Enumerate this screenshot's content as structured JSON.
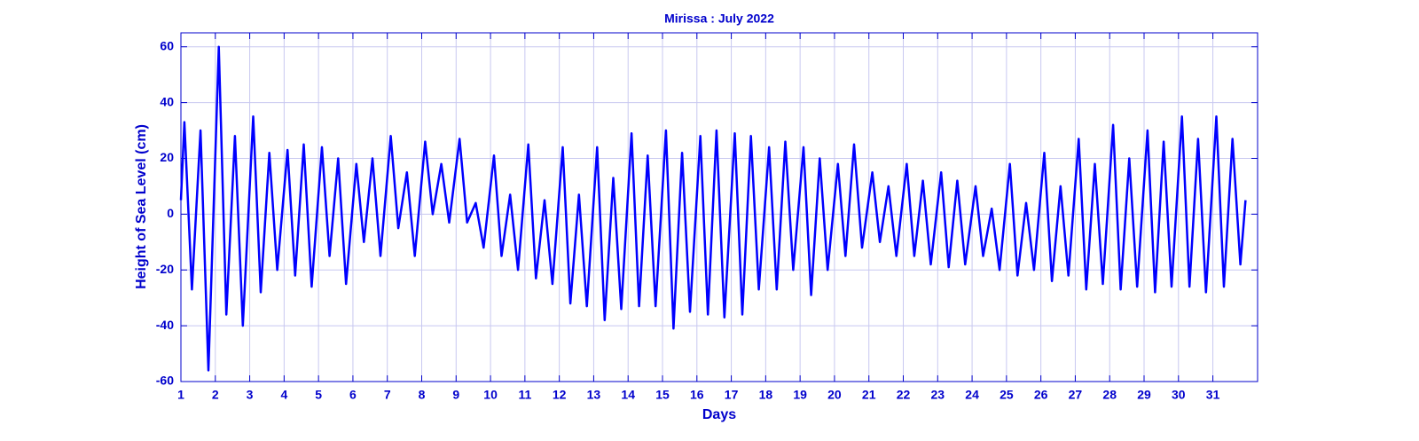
{
  "chart_data": {
    "type": "line",
    "title": "Mirissa : July 2022",
    "xlabel": "Days",
    "ylabel": "Height of Sea Level (cm)",
    "color": "#0000ff",
    "grid": true,
    "xlim": [
      1,
      32.3
    ],
    "ylim": [
      -60,
      65
    ],
    "xticks": [
      1,
      2,
      3,
      4,
      5,
      6,
      7,
      8,
      9,
      10,
      11,
      12,
      13,
      14,
      15,
      16,
      17,
      18,
      19,
      20,
      21,
      22,
      23,
      24,
      25,
      26,
      27,
      28,
      29,
      30,
      31
    ],
    "yticks": [
      -60,
      -40,
      -20,
      0,
      20,
      40,
      60
    ],
    "x": [
      1,
      1.1,
      1.32,
      1.57,
      1.8,
      2.1,
      2.32,
      2.57,
      2.8,
      3.1,
      3.32,
      3.57,
      3.8,
      4.1,
      4.32,
      4.57,
      4.8,
      5.1,
      5.32,
      5.57,
      5.8,
      6.1,
      6.32,
      6.57,
      6.8,
      7.1,
      7.32,
      7.57,
      7.8,
      8.1,
      8.32,
      8.57,
      8.8,
      9.1,
      9.32,
      9.57,
      9.8,
      10.1,
      10.32,
      10.57,
      10.8,
      11.1,
      11.32,
      11.57,
      11.8,
      12.1,
      12.32,
      12.57,
      12.8,
      13.1,
      13.32,
      13.57,
      13.8,
      14.1,
      14.32,
      14.57,
      14.8,
      15.1,
      15.32,
      15.57,
      15.8,
      16.1,
      16.32,
      16.57,
      16.8,
      17.1,
      17.32,
      17.57,
      17.8,
      18.1,
      18.32,
      18.57,
      18.8,
      19.1,
      19.32,
      19.57,
      19.8,
      20.1,
      20.32,
      20.57,
      20.8,
      21.1,
      21.32,
      21.57,
      21.8,
      22.1,
      22.32,
      22.57,
      22.8,
      23.1,
      23.32,
      23.57,
      23.8,
      24.1,
      24.32,
      24.57,
      24.8,
      25.1,
      25.32,
      25.57,
      25.8,
      26.1,
      26.32,
      26.57,
      26.8,
      27.1,
      27.32,
      27.57,
      27.8,
      28.1,
      28.32,
      28.57,
      28.8,
      29.1,
      29.32,
      29.57,
      29.8,
      30.1,
      30.32,
      30.57,
      30.8,
      31.1,
      31.32,
      31.57,
      31.8,
      31.95
    ],
    "values": [
      5,
      33,
      -27,
      30,
      -56,
      60,
      -36,
      28,
      -40,
      35,
      -28,
      22,
      -20,
      23,
      -22,
      25,
      -26,
      24,
      -15,
      20,
      -25,
      18,
      -10,
      20,
      -15,
      28,
      -5,
      15,
      -15,
      26,
      0,
      18,
      -3,
      27,
      -3,
      4,
      -12,
      21,
      -15,
      7,
      -20,
      25,
      -23,
      5,
      -25,
      24,
      -32,
      7,
      -33,
      24,
      -38,
      13,
      -34,
      29,
      -33,
      21,
      -33,
      30,
      -41,
      22,
      -35,
      28,
      -36,
      30,
      -37,
      29,
      -36,
      28,
      -27,
      24,
      -27,
      26,
      -20,
      24,
      -29,
      20,
      -20,
      18,
      -15,
      25,
      -12,
      15,
      -10,
      10,
      -15,
      18,
      -15,
      12,
      -18,
      15,
      -19,
      12,
      -18,
      10,
      -15,
      2,
      -20,
      18,
      -22,
      4,
      -20,
      22,
      -24,
      10,
      -22,
      27,
      -27,
      18,
      -25,
      32,
      -27,
      20,
      -26,
      30,
      -28,
      26,
      -26,
      35,
      -26,
      27,
      -28,
      35,
      -26,
      27,
      -18,
      5
    ]
  }
}
